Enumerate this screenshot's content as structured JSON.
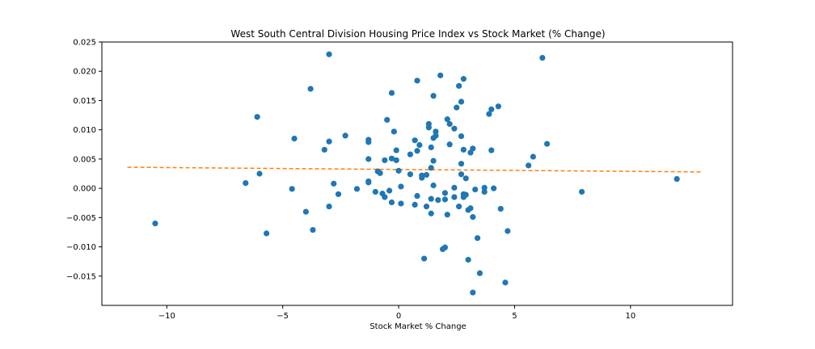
{
  "chart_data": {
    "type": "scatter",
    "title": "West South Central Division Housing Price Index vs Stock Market (% Change)",
    "xlabel": "Stock Market % Change",
    "ylabel": "",
    "xlim": [
      -12.8,
      14.4
    ],
    "ylim": [
      -0.02,
      0.025
    ],
    "x_ticks": [
      -10,
      -5,
      0,
      5,
      10
    ],
    "x_tick_labels": [
      "−10",
      "−5",
      "0",
      "5",
      "10"
    ],
    "y_ticks": [
      -0.015,
      -0.01,
      -0.005,
      0.0,
      0.005,
      0.01,
      0.015,
      0.02,
      0.025
    ],
    "y_tick_labels": [
      "−0.015",
      "−0.010",
      "−0.005",
      "0.000",
      "0.005",
      "0.010",
      "0.015",
      "0.020",
      "0.025"
    ],
    "grid": false,
    "colors": {
      "points": "#1f77b4",
      "trend": "#ff7f0e"
    },
    "trend_line": {
      "x": [
        -11.7,
        13.1
      ],
      "y": [
        0.0036,
        0.0028
      ]
    },
    "points": [
      [
        -10.5,
        -0.006
      ],
      [
        -6.6,
        0.0009
      ],
      [
        -6.1,
        0.0122
      ],
      [
        -6.0,
        0.0025
      ],
      [
        -5.7,
        -0.0077
      ],
      [
        -4.6,
        -0.0001
      ],
      [
        -4.5,
        0.0085
      ],
      [
        -4.0,
        -0.004
      ],
      [
        -3.8,
        0.017
      ],
      [
        -3.7,
        -0.0071
      ],
      [
        -3.2,
        0.0066
      ],
      [
        -3.0,
        0.008
      ],
      [
        -3.0,
        -0.0031
      ],
      [
        -3.0,
        0.0229
      ],
      [
        -2.8,
        0.0008
      ],
      [
        -2.6,
        -0.001
      ],
      [
        -2.3,
        0.009
      ],
      [
        -1.8,
        -0.0001
      ],
      [
        -1.3,
        0.0083
      ],
      [
        -1.3,
        0.0079
      ],
      [
        -1.3,
        0.005
      ],
      [
        -1.3,
        0.0012
      ],
      [
        -1.3,
        0.001
      ],
      [
        -1.0,
        -0.0006
      ],
      [
        -0.9,
        0.0029
      ],
      [
        -0.8,
        0.0026
      ],
      [
        -0.7,
        -0.0009
      ],
      [
        -0.6,
        0.0048
      ],
      [
        -0.6,
        -0.0015
      ],
      [
        -0.5,
        0.0117
      ],
      [
        -0.4,
        -0.0004
      ],
      [
        -0.3,
        0.0163
      ],
      [
        -0.3,
        0.0051
      ],
      [
        -0.3,
        -0.0024
      ],
      [
        -0.2,
        0.0097
      ],
      [
        -0.1,
        0.0065
      ],
      [
        -0.1,
        0.0048
      ],
      [
        0.0,
        0.003
      ],
      [
        0.1,
        0.0003
      ],
      [
        0.1,
        -0.0026
      ],
      [
        0.5,
        0.0058
      ],
      [
        0.5,
        0.0024
      ],
      [
        0.7,
        0.0082
      ],
      [
        0.7,
        -0.0028
      ],
      [
        0.8,
        0.0184
      ],
      [
        0.8,
        0.0064
      ],
      [
        0.8,
        -0.0013
      ],
      [
        0.9,
        0.0074
      ],
      [
        1.0,
        0.0022
      ],
      [
        1.0,
        0.0018
      ],
      [
        1.1,
        -0.012
      ],
      [
        1.2,
        -0.0031
      ],
      [
        1.2,
        0.0023
      ],
      [
        1.3,
        0.011
      ],
      [
        1.3,
        0.0104
      ],
      [
        1.4,
        0.007
      ],
      [
        1.4,
        0.0035
      ],
      [
        1.4,
        -0.0018
      ],
      [
        1.4,
        -0.0043
      ],
      [
        1.5,
        0.0158
      ],
      [
        1.5,
        0.0086
      ],
      [
        1.5,
        0.0047
      ],
      [
        1.5,
        0.0005
      ],
      [
        1.6,
        0.0097
      ],
      [
        1.6,
        0.009
      ],
      [
        1.7,
        -0.002
      ],
      [
        1.8,
        0.0193
      ],
      [
        1.9,
        -0.0104
      ],
      [
        2.0,
        -0.0019
      ],
      [
        2.0,
        -0.0008
      ],
      [
        2.0,
        -0.0101
      ],
      [
        2.1,
        0.0118
      ],
      [
        2.1,
        -0.0045
      ],
      [
        2.2,
        0.011
      ],
      [
        2.2,
        0.0075
      ],
      [
        2.4,
        0.0102
      ],
      [
        2.4,
        0.0001
      ],
      [
        2.4,
        -0.0015
      ],
      [
        2.5,
        0.0138
      ],
      [
        2.6,
        0.0175
      ],
      [
        2.6,
        -0.0031
      ],
      [
        2.7,
        0.0148
      ],
      [
        2.7,
        0.0089
      ],
      [
        2.7,
        0.0042
      ],
      [
        2.7,
        0.0024
      ],
      [
        2.8,
        0.0187
      ],
      [
        2.8,
        0.0066
      ],
      [
        2.8,
        -0.001
      ],
      [
        2.8,
        -0.0015
      ],
      [
        2.9,
        0.0017
      ],
      [
        2.9,
        -0.0011
      ],
      [
        3.0,
        -0.0122
      ],
      [
        3.0,
        -0.0037
      ],
      [
        3.1,
        0.0061
      ],
      [
        3.1,
        -0.0034
      ],
      [
        3.2,
        0.0068
      ],
      [
        3.2,
        -0.0049
      ],
      [
        3.2,
        -0.0178
      ],
      [
        3.3,
        -0.0002
      ],
      [
        3.4,
        -0.0085
      ],
      [
        3.5,
        -0.0145
      ],
      [
        3.7,
        0.0001
      ],
      [
        3.7,
        -0.0006
      ],
      [
        3.9,
        0.0127
      ],
      [
        4.0,
        0.0135
      ],
      [
        4.0,
        0.0065
      ],
      [
        4.1,
        0.0
      ],
      [
        4.3,
        0.014
      ],
      [
        4.4,
        -0.0035
      ],
      [
        4.6,
        -0.0161
      ],
      [
        4.7,
        -0.0073
      ],
      [
        5.6,
        0.0039
      ],
      [
        5.8,
        0.0054
      ],
      [
        6.2,
        0.0223
      ],
      [
        6.4,
        0.0076
      ],
      [
        7.9,
        -0.0006
      ],
      [
        12.0,
        0.0016
      ]
    ]
  }
}
